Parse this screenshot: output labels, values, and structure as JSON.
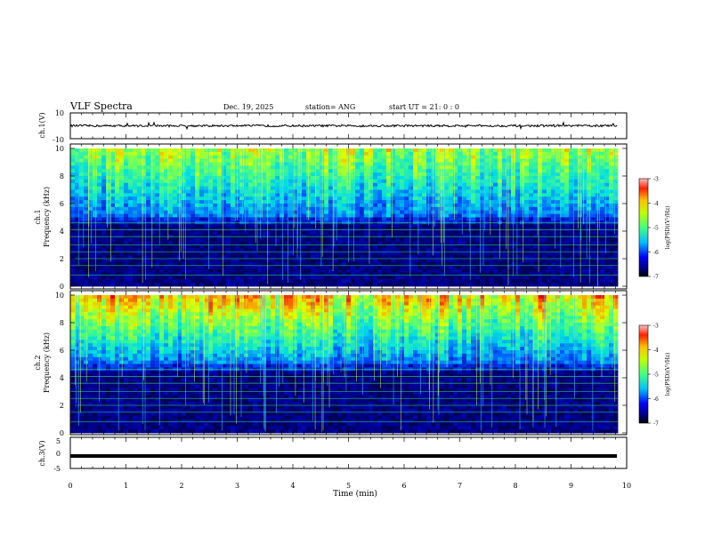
{
  "header": {
    "title": "VLF Spectra",
    "date": "Dec. 19, 2025",
    "station": "station= ANG",
    "start": "start  UT =   21: 0  : 0"
  },
  "chart_data": [
    {
      "type": "line",
      "panel": "ch1-waveform",
      "ylabel": "ch.1(V)",
      "ylim": [
        -10,
        10
      ],
      "y_ticks": [
        "10",
        "-10"
      ],
      "baseline_value": 0
    },
    {
      "type": "heatmap",
      "panel": "ch1-spectrogram",
      "ylabel_channel": "ch.1",
      "ylabel": "Frequency  (kHz)",
      "ylim": [
        0,
        10
      ],
      "y_ticks": [
        "0",
        "2",
        "4",
        "6",
        "8",
        "10"
      ],
      "colorbar": {
        "label": "log(PSD)(V²/Hz)",
        "range": [
          -7,
          -3
        ],
        "ticks": [
          "-3",
          "-4",
          "-5",
          "-6",
          "-7"
        ]
      }
    },
    {
      "type": "heatmap",
      "panel": "ch2-spectrogram",
      "ylabel_channel": "ch.2",
      "ylabel": "Frequency  (kHz)",
      "ylim": [
        0,
        10
      ],
      "y_ticks": [
        "0",
        "2",
        "4",
        "6",
        "8",
        "10"
      ],
      "colorbar": {
        "label": "log(PSD)(V²/Hz)",
        "range": [
          -7,
          -3
        ],
        "ticks": [
          "-3",
          "-4",
          "-5",
          "-6",
          "-7"
        ]
      }
    },
    {
      "type": "line",
      "panel": "ch3-waveform",
      "ylabel": "ch.3(V)",
      "ylim": [
        -5,
        5
      ],
      "y_ticks": [
        "5",
        "0",
        "-5"
      ],
      "baseline_value": -1
    }
  ],
  "x_axis": {
    "label": "Time  (min)",
    "range": [
      0,
      10
    ],
    "ticks": [
      "0",
      "1",
      "2",
      "3",
      "4",
      "5",
      "6",
      "7",
      "8",
      "9",
      "10"
    ]
  },
  "colors": {
    "colormap": [
      "#000080",
      "#0000ff",
      "#0080ff",
      "#00ffff",
      "#80ff80",
      "#ffff00",
      "#ff8000",
      "#ff0000",
      "#800000"
    ]
  }
}
